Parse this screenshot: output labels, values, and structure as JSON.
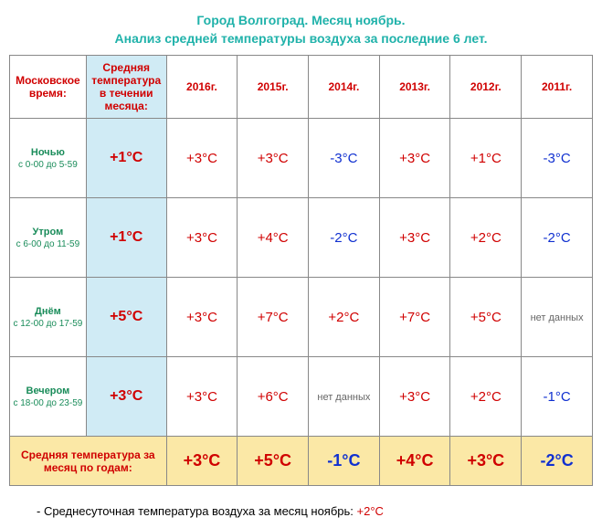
{
  "title1": "Город Волгоград. Месяц ноябрь.",
  "title2": "Анализ средней температуры воздуха за последние 6 лет.",
  "headers": {
    "time": "Московское время:",
    "avg": "Средняя температура в течении месяца:",
    "y2016": "2016г.",
    "y2015": "2015г.",
    "y2014": "2014г.",
    "y2013": "2013г.",
    "y2012": "2012г.",
    "y2011": "2011г."
  },
  "rows": [
    {
      "label": "Ночью",
      "sub": "с 0-00 до 5-59",
      "avg": "+1°C",
      "vals": [
        {
          "t": "+3°C",
          "c": "pos"
        },
        {
          "t": "+3°C",
          "c": "pos"
        },
        {
          "t": "-3°C",
          "c": "neg"
        },
        {
          "t": "+3°C",
          "c": "pos"
        },
        {
          "t": "+1°C",
          "c": "pos"
        },
        {
          "t": "-3°C",
          "c": "neg"
        }
      ]
    },
    {
      "label": "Утром",
      "sub": "с 6-00 до 11-59",
      "avg": "+1°C",
      "vals": [
        {
          "t": "+3°C",
          "c": "pos"
        },
        {
          "t": "+4°C",
          "c": "pos"
        },
        {
          "t": "-2°C",
          "c": "neg"
        },
        {
          "t": "+3°C",
          "c": "pos"
        },
        {
          "t": "+2°C",
          "c": "pos"
        },
        {
          "t": "-2°C",
          "c": "neg"
        }
      ]
    },
    {
      "label": "Днём",
      "sub": "с 12-00 до 17-59",
      "avg": "+5°C",
      "vals": [
        {
          "t": "+3°C",
          "c": "pos"
        },
        {
          "t": "+7°C",
          "c": "pos"
        },
        {
          "t": "+2°C",
          "c": "pos"
        },
        {
          "t": "+7°C",
          "c": "pos"
        },
        {
          "t": "+5°C",
          "c": "pos"
        },
        {
          "t": "нет данных",
          "c": "nodata"
        }
      ]
    },
    {
      "label": "Вечером",
      "sub": "с 18-00 до 23-59",
      "avg": "+3°C",
      "vals": [
        {
          "t": "+3°C",
          "c": "pos"
        },
        {
          "t": "+6°C",
          "c": "pos"
        },
        {
          "t": "нет данных",
          "c": "nodata"
        },
        {
          "t": "+3°C",
          "c": "pos"
        },
        {
          "t": "+2°C",
          "c": "pos"
        },
        {
          "t": "-1°C",
          "c": "neg"
        }
      ]
    }
  ],
  "footer": {
    "label": "Средняя температура за месяц по годам:",
    "vals": [
      {
        "t": "+3°C",
        "c": "pos"
      },
      {
        "t": "+5°C",
        "c": "pos"
      },
      {
        "t": "-1°C",
        "c": "neg"
      },
      {
        "t": "+4°C",
        "c": "pos"
      },
      {
        "t": "+3°C",
        "c": "pos"
      },
      {
        "t": "-2°C",
        "c": "neg"
      }
    ]
  },
  "bottom": {
    "text": "- Среднесуточная температура воздуха за месяц ноябрь: ",
    "val": "+2°C"
  },
  "colors": {
    "title": "#20b2aa",
    "red": "#d00000",
    "blue": "#1030d0",
    "green": "#1a8c5a",
    "avg_bg": "#d0ebf5",
    "footer_bg": "#fbe8a6"
  }
}
